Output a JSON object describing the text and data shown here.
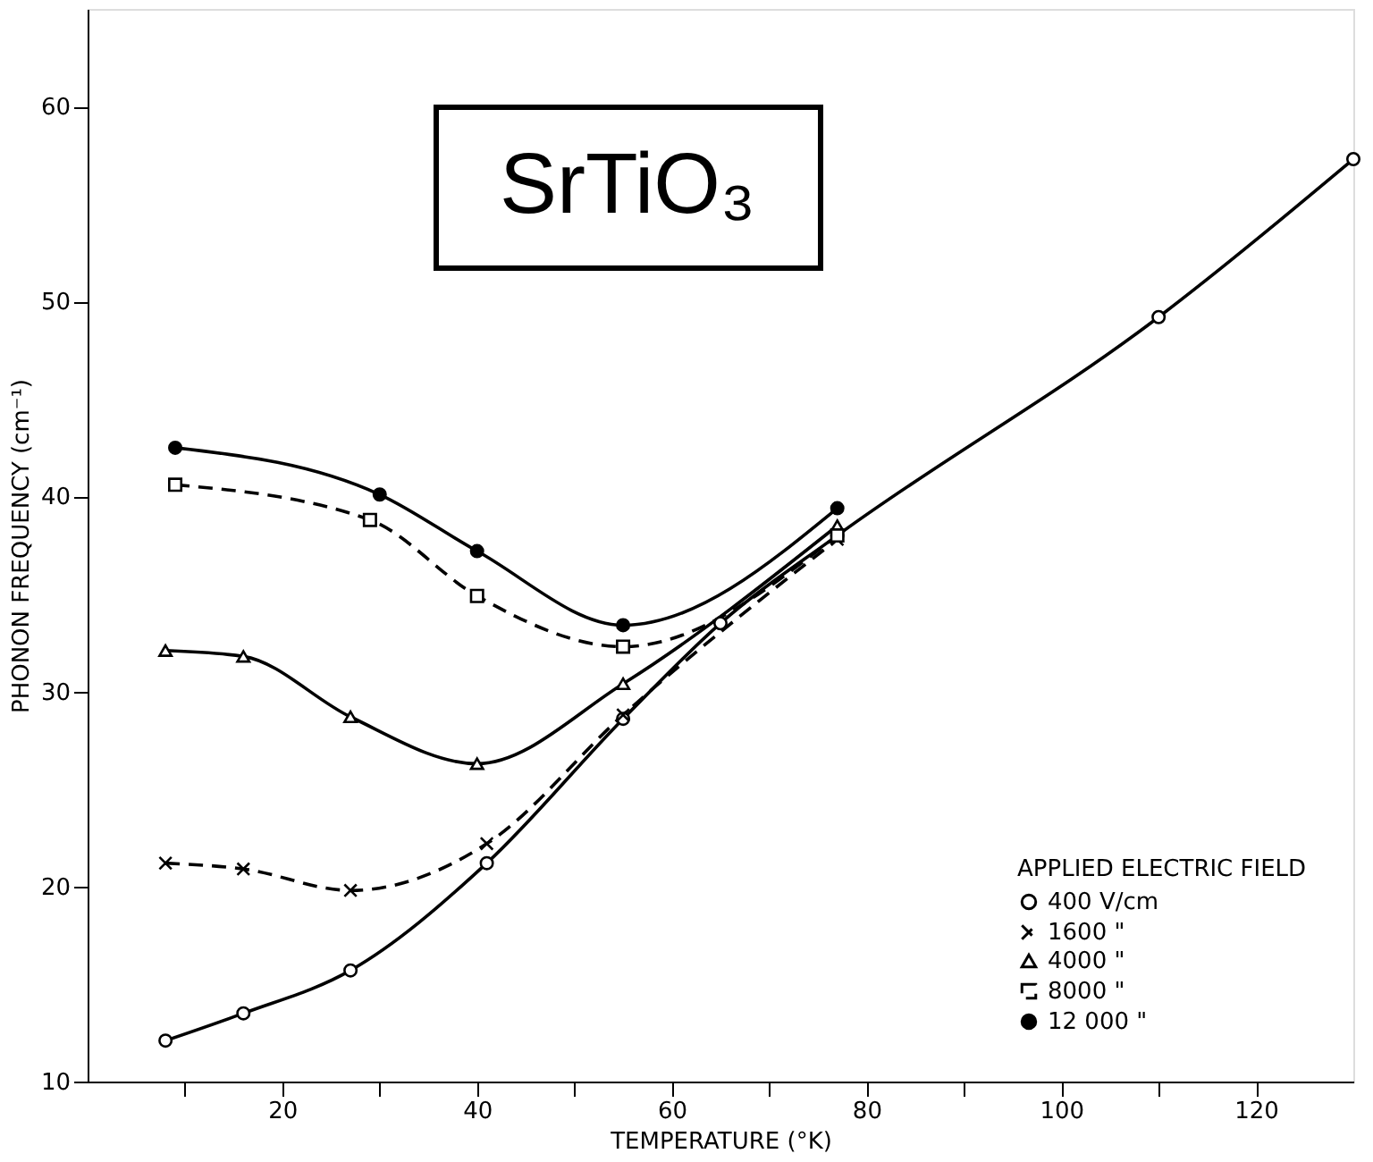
{
  "chart_data": {
    "type": "line",
    "xlabel": "TEMPERATURE (°K)",
    "ylabel": "PHONON FREQUENCY (cm⁻¹)",
    "legend_title": "APPLIED ELECTRIC FIELD",
    "annotations": [
      "SrTiO₃"
    ],
    "xlim": [
      0,
      130
    ],
    "ylim": [
      10,
      65
    ],
    "xticks": [
      {
        "value": 10,
        "label": null
      },
      20,
      {
        "value": 30,
        "label": null
      },
      40,
      {
        "value": 50,
        "label": null
      },
      60,
      {
        "value": 70,
        "label": null
      },
      80,
      {
        "value": 90,
        "label": null
      },
      100,
      {
        "value": 110,
        "label": null
      },
      120
    ],
    "yticks": [
      10,
      20,
      30,
      40,
      50,
      60
    ],
    "grid": false,
    "legend": "bottom right",
    "series": [
      {
        "name": "400 V/cm",
        "color": "#000000",
        "marker": "circle",
        "line_style": "solid",
        "x": [
          8,
          16,
          27,
          41,
          55,
          65,
          77,
          110,
          130
        ],
        "values": [
          12.1,
          13.5,
          15.7,
          21.2,
          28.6,
          33.5,
          38.0,
          49.2,
          57.3
        ]
      },
      {
        "name": "1600 \"",
        "color": "#000000",
        "marker": "cross",
        "line_style": "dashed",
        "x": [
          8,
          16,
          27,
          41,
          55,
          77
        ],
        "values": [
          21.2,
          20.9,
          19.8,
          22.2,
          28.8,
          37.8
        ]
      },
      {
        "name": "4000 \"",
        "color": "#000000",
        "marker": "triangle",
        "line_style": "solid",
        "x": [
          8,
          16,
          27,
          40,
          55,
          77
        ],
        "values": [
          32.1,
          31.8,
          28.7,
          26.3,
          30.4,
          38.5
        ]
      },
      {
        "name": "8000 \"",
        "color": "#000000",
        "marker": "square",
        "line_style": "dashed",
        "x": [
          9,
          29,
          40,
          55,
          77
        ],
        "values": [
          40.6,
          38.8,
          34.9,
          32.3,
          38.0
        ]
      },
      {
        "name": "12 000 \"",
        "color": "#000000",
        "marker": "circle",
        "line_style": "solid",
        "x": [
          9,
          30,
          40,
          55,
          77
        ],
        "values": [
          42.5,
          40.1,
          37.2,
          33.4,
          39.4
        ]
      }
    ]
  }
}
